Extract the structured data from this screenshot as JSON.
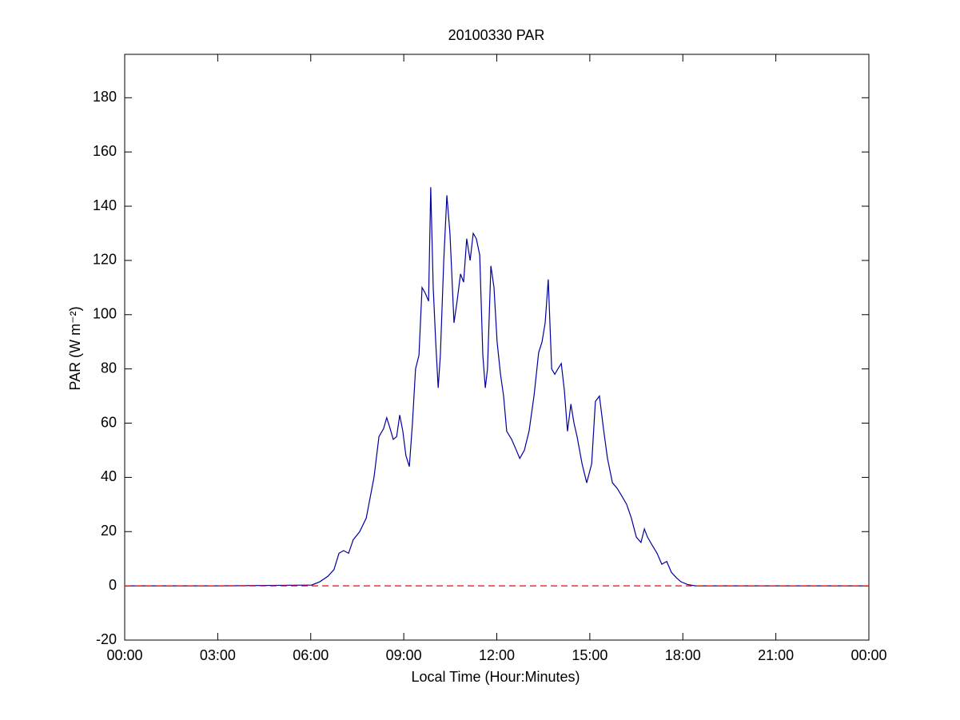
{
  "chart_data": {
    "type": "line",
    "title": "20100330 PAR",
    "xlabel": "Local Time (Hour:Minutes)",
    "ylabel": "PAR (W m⁻²)",
    "xlim": [
      0,
      24
    ],
    "ylim": [
      -20,
      196
    ],
    "xticks": [
      {
        "value": 0,
        "label": "00:00"
      },
      {
        "value": 3,
        "label": "03:00"
      },
      {
        "value": 6,
        "label": "06:00"
      },
      {
        "value": 9,
        "label": "09:00"
      },
      {
        "value": 12,
        "label": "12:00"
      },
      {
        "value": 15,
        "label": "15:00"
      },
      {
        "value": 18,
        "label": "18:00"
      },
      {
        "value": 21,
        "label": "21:00"
      },
      {
        "value": 24,
        "label": "00:00"
      }
    ],
    "yticks": [
      -20,
      0,
      20,
      40,
      60,
      80,
      100,
      120,
      140,
      160,
      180
    ],
    "reference_line": {
      "value": 0,
      "color": "#ff0000"
    },
    "series": [
      {
        "name": "PAR",
        "color": "#0000a0",
        "x": [
          0,
          3,
          6.03,
          6.29,
          6.55,
          6.75,
          6.91,
          7.06,
          7.22,
          7.37,
          7.58,
          7.79,
          7.94,
          8.04,
          8.2,
          8.35,
          8.45,
          8.56,
          8.66,
          8.77,
          8.87,
          8.97,
          9.07,
          9.18,
          9.28,
          9.38,
          9.49,
          9.59,
          9.69,
          9.8,
          9.87,
          9.95,
          10.03,
          10.11,
          10.18,
          10.29,
          10.39,
          10.49,
          10.62,
          10.72,
          10.83,
          10.93,
          11.03,
          11.14,
          11.24,
          11.34,
          11.45,
          11.55,
          11.63,
          11.7,
          11.81,
          11.91,
          12.01,
          12.12,
          12.22,
          12.32,
          12.48,
          12.63,
          12.74,
          12.89,
          13.04,
          13.2,
          13.35,
          13.46,
          13.56,
          13.66,
          13.77,
          13.87,
          13.97,
          14.08,
          14.18,
          14.28,
          14.39,
          14.49,
          14.59,
          14.75,
          14.9,
          15.06,
          15.18,
          15.31,
          15.44,
          15.57,
          15.73,
          15.88,
          16.04,
          16.19,
          16.34,
          16.5,
          16.65,
          16.76,
          16.86,
          17.01,
          17.17,
          17.32,
          17.48,
          17.63,
          17.79,
          17.94,
          18.15,
          18.41,
          21,
          24
        ],
        "values": [
          0,
          0,
          0.3,
          1.5,
          3.5,
          6,
          12,
          13,
          12,
          17,
          20,
          25,
          34,
          40,
          55,
          58,
          62,
          58,
          54,
          55,
          63,
          57,
          48,
          44,
          60,
          80,
          85,
          110,
          108,
          105,
          147,
          110,
          90,
          73,
          85,
          120,
          144,
          130,
          97,
          105,
          115,
          112,
          128,
          120,
          130,
          128,
          122,
          85,
          73,
          80,
          118,
          110,
          90,
          78,
          70,
          57,
          54,
          50,
          47,
          50,
          57,
          70,
          86,
          90,
          97,
          113,
          80,
          78,
          80,
          82,
          72,
          57,
          67,
          60,
          55,
          45,
          38,
          45,
          68,
          70,
          58,
          47,
          38,
          36,
          33,
          30,
          25,
          18,
          16,
          21,
          18,
          15,
          12,
          8,
          9,
          5,
          3,
          1.5,
          0.5,
          0,
          0,
          0
        ]
      }
    ]
  }
}
